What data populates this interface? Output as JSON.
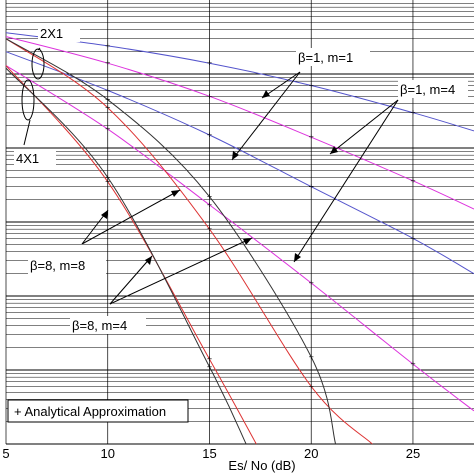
{
  "chart_data": {
    "type": "line",
    "xlabel": "Es/ No (dB)",
    "ylabel": "",
    "title": "",
    "xlim": [
      5,
      28
    ],
    "x_ticks": [
      "5",
      "10",
      "15",
      "20",
      "25"
    ],
    "y_scale": "log",
    "ylim": [
      1e-06,
      1
    ],
    "grid": true,
    "legend": "+ Analytical Approximation",
    "annotations": [
      "2X1",
      "4X1",
      "β=1, m=1",
      "β=1, m=4",
      "β=8, m=8",
      "β=8, m=4"
    ],
    "series": [
      {
        "color": "#5555cc",
        "x": [
          5,
          10,
          15,
          20,
          25,
          28
        ],
        "y": [
          0.36,
          0.24,
          0.14,
          0.07,
          0.03,
          0.017
        ]
      },
      {
        "color": "#dd33dd",
        "x": [
          5,
          10,
          15,
          20,
          25,
          28
        ],
        "y": [
          0.32,
          0.14,
          0.05,
          0.014,
          0.0036,
          0.0015
        ]
      },
      {
        "color": "#5555cc",
        "x": [
          5,
          10,
          15,
          20,
          25,
          28
        ],
        "y": [
          0.2,
          0.06,
          0.015,
          0.003,
          0.0006,
          0.0002
        ]
      },
      {
        "color": "#dd33dd",
        "x": [
          5,
          10,
          15,
          20,
          25,
          28
        ],
        "y": [
          0.13,
          0.018,
          0.0017,
          0.00015,
          1.2e-05,
          2.8e-06
        ]
      },
      {
        "color": "#dd3333",
        "x": [
          5,
          10,
          15,
          20,
          23
        ],
        "y": [
          0.3,
          0.035,
          0.0008,
          6e-06,
          1e-06
        ]
      },
      {
        "color": "#333333",
        "x": [
          5,
          10,
          15,
          20,
          21.2
        ],
        "y": [
          0.3,
          0.045,
          0.0022,
          1.5e-05,
          1e-06
        ]
      },
      {
        "color": "#dd3333",
        "x": [
          5,
          10,
          15,
          17.3
        ],
        "y": [
          0.13,
          0.0035,
          1.4e-05,
          1e-06
        ]
      },
      {
        "color": "#333333",
        "x": [
          5,
          10,
          15,
          16.8
        ],
        "y": [
          0.12,
          0.004,
          1.1e-05,
          1e-06
        ]
      }
    ]
  }
}
